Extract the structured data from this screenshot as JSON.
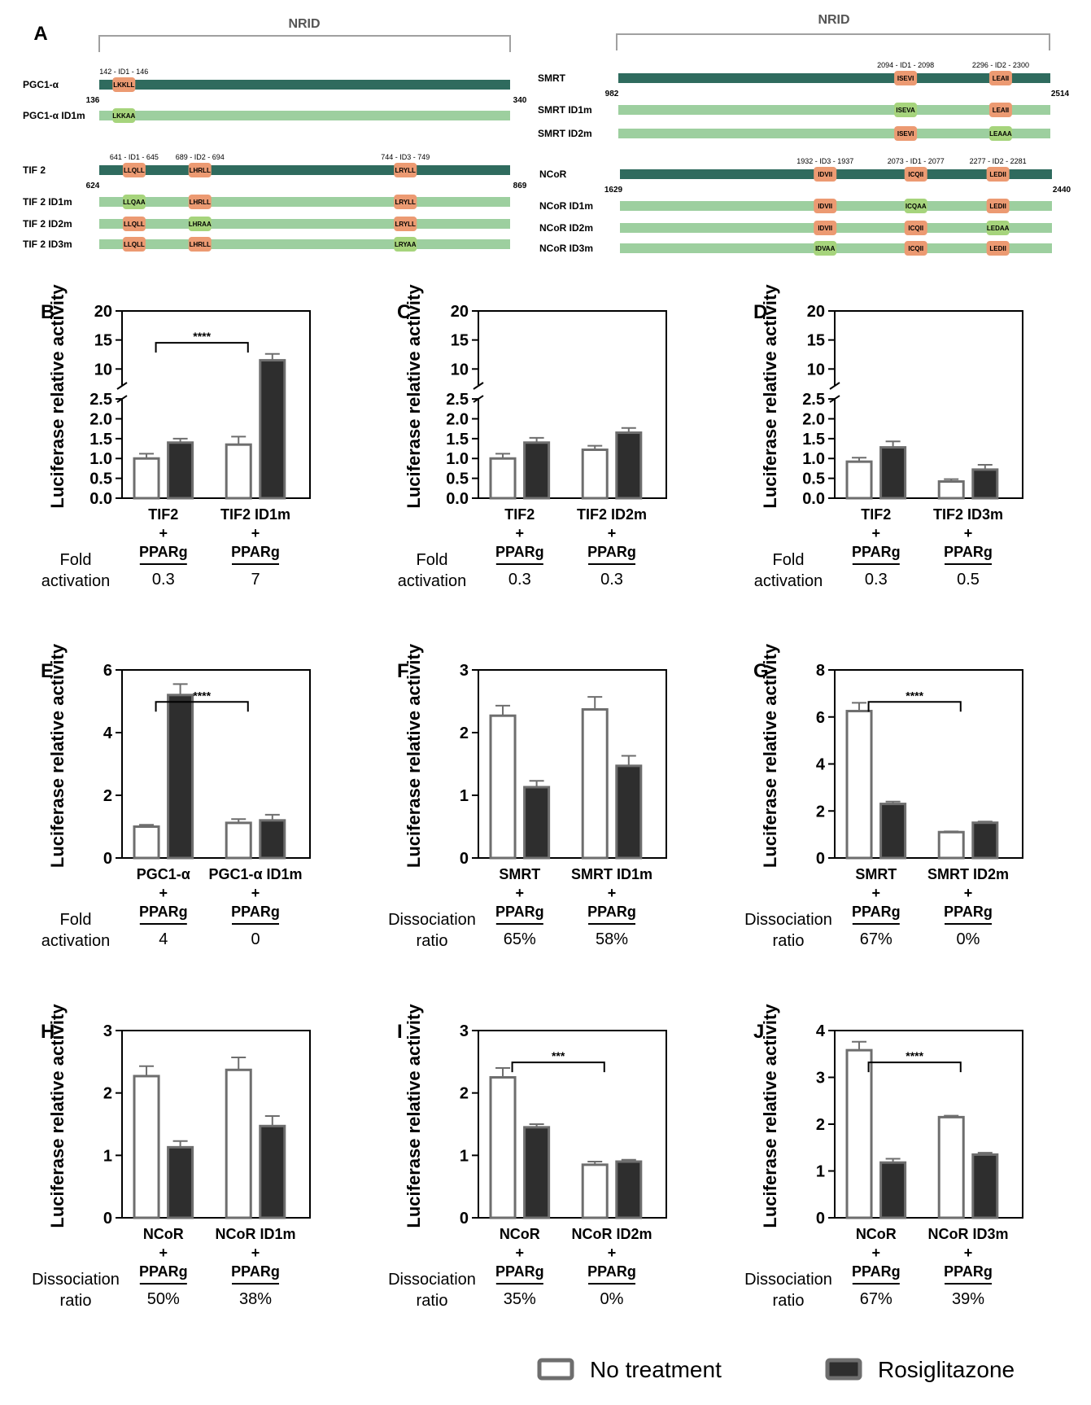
{
  "panel_a": {
    "label": "A",
    "nrid_label": "NRID",
    "left_groups": [
      {
        "rows": [
          {
            "name": "PGC1-α",
            "wt": true,
            "motifs": [
              "LKKLL"
            ],
            "mut": [
              false
            ],
            "ranges": [
              "142 - ID1 - 146"
            ],
            "start": "136",
            "end": "340"
          },
          {
            "name": "PGC1-α ID1m",
            "wt": false,
            "motifs": [
              "LKKAA"
            ],
            "mut": [
              true
            ]
          }
        ],
        "motif_pos": [
          0.06
        ]
      },
      {
        "rows": [
          {
            "name": "TIF 2",
            "wt": true,
            "motifs": [
              "LLQLL",
              "LHRLL",
              "LRYLL"
            ],
            "mut": [
              false,
              false,
              false
            ],
            "ranges": [
              "641 - ID1 - 645",
              "689 - ID2 - 694",
              "744 - ID3 - 749"
            ],
            "start": "624",
            "end": "869"
          },
          {
            "name": "TIF 2 ID1m",
            "wt": false,
            "motifs": [
              "LLQAA",
              "LHRLL",
              "LRYLL"
            ],
            "mut": [
              true,
              false,
              false
            ]
          },
          {
            "name": "TIF 2 ID2m",
            "wt": false,
            "motifs": [
              "LLQLL",
              "LHRAA",
              "LRYLL"
            ],
            "mut": [
              false,
              true,
              false
            ]
          },
          {
            "name": "TIF 2 ID3m",
            "wt": false,
            "motifs": [
              "LLQLL",
              "LHRLL",
              "LRYAA"
            ],
            "mut": [
              false,
              false,
              true
            ]
          }
        ],
        "motif_pos": [
          0.085,
          0.245,
          0.745
        ]
      }
    ],
    "right_groups": [
      {
        "rows": [
          {
            "name": "SMRT",
            "wt": true,
            "motifs": [
              "ISEVI",
              "LEAII"
            ],
            "mut": [
              false,
              false
            ],
            "ranges": [
              "2094 - ID1 - 2098",
              "2296 - ID2 - 2300"
            ],
            "start": "982",
            "end": "2514"
          },
          {
            "name": "SMRT ID1m",
            "wt": false,
            "motifs": [
              "ISEVA",
              "LEAII"
            ],
            "mut": [
              true,
              false
            ]
          },
          {
            "name": "SMRT ID2m",
            "wt": false,
            "motifs": [
              "ISEVI",
              "LEAAA"
            ],
            "mut": [
              false,
              true
            ]
          }
        ],
        "motif_pos": [
          0.665,
          0.885
        ]
      },
      {
        "rows": [
          {
            "name": "NCoR",
            "wt": true,
            "motifs": [
              "IDVII",
              "ICQII",
              "LEDII"
            ],
            "mut": [
              false,
              false,
              false
            ],
            "ranges": [
              "1932 - ID3 - 1937",
              "2073 - ID1 - 2077",
              "2277 - ID2 - 2281"
            ],
            "start": "1629",
            "end": "2440"
          },
          {
            "name": "NCoR ID1m",
            "wt": false,
            "motifs": [
              "IDVII",
              "ICQAA",
              "LEDII"
            ],
            "mut": [
              false,
              true,
              false
            ]
          },
          {
            "name": "NCoR ID2m",
            "wt": false,
            "motifs": [
              "IDVII",
              "ICQII",
              "LEDAA"
            ],
            "mut": [
              false,
              false,
              true
            ]
          },
          {
            "name": "NCoR ID3m",
            "wt": false,
            "motifs": [
              "IDVAA",
              "ICQII",
              "LEDII"
            ],
            "mut": [
              true,
              false,
              false
            ]
          }
        ],
        "motif_pos": [
          0.475,
          0.685,
          0.875
        ]
      }
    ]
  },
  "chart_data": [
    {
      "type": "bar",
      "panel": "B",
      "ylabel": "Luciferase relative activity",
      "broken_axis": true,
      "yticks_low": [
        "0.0",
        "0.5",
        "1.0",
        "1.5",
        "2.0",
        "2.5"
      ],
      "yticks_high": [
        "10",
        "15",
        "20"
      ],
      "groups": [
        {
          "l1": "TIF2",
          "l2": "+",
          "l3": "PPARg",
          "note": "0.3"
        },
        {
          "l1": "TIF2 ID1m",
          "l2": "+",
          "l3": "PPARg",
          "note": "7"
        }
      ],
      "series": [
        {
          "name": "No treatment",
          "values": [
            1.0,
            1.35
          ],
          "errors": [
            0.12,
            0.2
          ]
        },
        {
          "name": "Rosiglitazone",
          "values": [
            1.4,
            11.5
          ],
          "errors": [
            0.1,
            1.1
          ]
        }
      ],
      "note_label": [
        "Fold",
        "activation"
      ],
      "significance": "****"
    },
    {
      "type": "bar",
      "panel": "C",
      "ylabel": "Luciferase relative activity",
      "broken_axis": true,
      "yticks_low": [
        "0.0",
        "0.5",
        "1.0",
        "1.5",
        "2.0",
        "2.5"
      ],
      "yticks_high": [
        "10",
        "15",
        "20"
      ],
      "groups": [
        {
          "l1": "TIF2",
          "l2": "+",
          "l3": "PPARg",
          "note": "0.3"
        },
        {
          "l1": "TIF2 ID2m",
          "l2": "+",
          "l3": "PPARg",
          "note": "0.3"
        }
      ],
      "series": [
        {
          "name": "No treatment",
          "values": [
            1.0,
            1.22
          ],
          "errors": [
            0.12,
            0.1
          ]
        },
        {
          "name": "Rosiglitazone",
          "values": [
            1.4,
            1.65
          ],
          "errors": [
            0.12,
            0.12
          ]
        }
      ],
      "note_label": [
        "Fold",
        "activation"
      ],
      "significance": ""
    },
    {
      "type": "bar",
      "panel": "D",
      "ylabel": "Luciferase relative activity",
      "broken_axis": true,
      "yticks_low": [
        "0.0",
        "0.5",
        "1.0",
        "1.5",
        "2.0",
        "2.5"
      ],
      "yticks_high": [
        "10",
        "15",
        "20"
      ],
      "groups": [
        {
          "l1": "TIF2",
          "l2": "+",
          "l3": "PPARg",
          "note": "0.3"
        },
        {
          "l1": "TIF2 ID3m",
          "l2": "+",
          "l3": "PPARg",
          "note": "0.5"
        }
      ],
      "series": [
        {
          "name": "No treatment",
          "values": [
            0.92,
            0.42
          ],
          "errors": [
            0.1,
            0.06
          ]
        },
        {
          "name": "Rosiglitazone",
          "values": [
            1.28,
            0.72
          ],
          "errors": [
            0.15,
            0.12
          ]
        }
      ],
      "note_label": [
        "Fold",
        "activation"
      ],
      "significance": ""
    },
    {
      "type": "bar",
      "panel": "E",
      "ylabel": "Luciferase relative activity",
      "broken_axis": false,
      "ylim": [
        0,
        6
      ],
      "yticks": [
        "0",
        "2",
        "4",
        "6"
      ],
      "groups": [
        {
          "l1": "PGC1-α",
          "l2": "+",
          "l3": "PPARg",
          "note": "4"
        },
        {
          "l1": "PGC1-α ID1m",
          "l2": "+",
          "l3": "PPARg",
          "note": "0"
        }
      ],
      "series": [
        {
          "name": "No treatment",
          "values": [
            1.0,
            1.12
          ],
          "errors": [
            0.06,
            0.12
          ]
        },
        {
          "name": "Rosiglitazone",
          "values": [
            5.2,
            1.2
          ],
          "errors": [
            0.35,
            0.18
          ]
        }
      ],
      "note_label": [
        "Fold",
        "activation"
      ],
      "significance": "****"
    },
    {
      "type": "bar",
      "panel": "F",
      "ylabel": "Luciferase relative activity",
      "broken_axis": false,
      "ylim": [
        0,
        3
      ],
      "yticks": [
        "0",
        "1",
        "2",
        "3"
      ],
      "groups": [
        {
          "l1": "SMRT",
          "l2": "+",
          "l3": "PPARg",
          "note": "65%"
        },
        {
          "l1": "SMRT ID1m",
          "l2": "+",
          "l3": "PPARg",
          "note": "58%"
        }
      ],
      "series": [
        {
          "name": "No treatment",
          "values": [
            2.27,
            2.37
          ],
          "errors": [
            0.16,
            0.2
          ]
        },
        {
          "name": "Rosiglitazone",
          "values": [
            1.13,
            1.47
          ],
          "errors": [
            0.1,
            0.16
          ]
        }
      ],
      "note_label": [
        "Dissociation",
        "ratio"
      ],
      "significance": ""
    },
    {
      "type": "bar",
      "panel": "G",
      "ylabel": "Luciferase relative activity",
      "broken_axis": false,
      "ylim": [
        0,
        8
      ],
      "yticks": [
        "0",
        "2",
        "4",
        "6",
        "8"
      ],
      "groups": [
        {
          "l1": "SMRT",
          "l2": "+",
          "l3": "PPARg",
          "note": "67%"
        },
        {
          "l1": "SMRT ID2m",
          "l2": "+",
          "l3": "PPARg",
          "note": "0%"
        }
      ],
      "series": [
        {
          "name": "No treatment",
          "values": [
            6.25,
            1.1
          ],
          "errors": [
            0.35,
            0.03
          ]
        },
        {
          "name": "Rosiglitazone",
          "values": [
            2.3,
            1.5
          ],
          "errors": [
            0.1,
            0.05
          ]
        }
      ],
      "note_label": [
        "Dissociation",
        "ratio"
      ],
      "significance": "****"
    },
    {
      "type": "bar",
      "panel": "H",
      "ylabel": "Luciferase relative activity",
      "broken_axis": false,
      "ylim": [
        0,
        3
      ],
      "yticks": [
        "0",
        "1",
        "2",
        "3"
      ],
      "groups": [
        {
          "l1": "NCoR",
          "l2": "+",
          "l3": "PPARg",
          "note": "50%"
        },
        {
          "l1": "NCoR ID1m",
          "l2": "+",
          "l3": "PPARg",
          "note": "38%"
        }
      ],
      "series": [
        {
          "name": "No treatment",
          "values": [
            2.27,
            2.37
          ],
          "errors": [
            0.16,
            0.2
          ]
        },
        {
          "name": "Rosiglitazone",
          "values": [
            1.13,
            1.47
          ],
          "errors": [
            0.1,
            0.16
          ]
        }
      ],
      "note_label": [
        "Dissociation",
        "ratio"
      ],
      "significance": ""
    },
    {
      "type": "bar",
      "panel": "I",
      "ylabel": "Luciferase relative activity",
      "broken_axis": false,
      "ylim": [
        0,
        3
      ],
      "yticks": [
        "0",
        "1",
        "2",
        "3"
      ],
      "groups": [
        {
          "l1": "NCoR",
          "l2": "+",
          "l3": "PPARg",
          "note": "35%"
        },
        {
          "l1": "NCoR ID2m",
          "l2": "+",
          "l3": "PPARg",
          "note": "0%"
        }
      ],
      "series": [
        {
          "name": "No treatment",
          "values": [
            2.25,
            0.85
          ],
          "errors": [
            0.15,
            0.05
          ]
        },
        {
          "name": "Rosiglitazone",
          "values": [
            1.45,
            0.9
          ],
          "errors": [
            0.05,
            0.03
          ]
        }
      ],
      "note_label": [
        "Dissociation",
        "ratio"
      ],
      "significance": "***"
    },
    {
      "type": "bar",
      "panel": "J",
      "ylabel": "Luciferase relative activity",
      "broken_axis": false,
      "ylim": [
        0,
        4
      ],
      "yticks": [
        "0",
        "1",
        "2",
        "3",
        "4"
      ],
      "groups": [
        {
          "l1": "NCoR",
          "l2": "+",
          "l3": "PPARg",
          "note": "67%"
        },
        {
          "l1": "NCoR ID3m",
          "l2": "+",
          "l3": "PPARg",
          "note": "39%"
        }
      ],
      "series": [
        {
          "name": "No treatment",
          "values": [
            3.58,
            2.15
          ],
          "errors": [
            0.18,
            0.03
          ]
        },
        {
          "name": "Rosiglitazone",
          "values": [
            1.18,
            1.35
          ],
          "errors": [
            0.08,
            0.04
          ]
        }
      ],
      "note_label": [
        "Dissociation",
        "ratio"
      ],
      "significance": "****"
    }
  ],
  "legend": {
    "items": [
      {
        "label": "No treatment",
        "fill": "#ffffff"
      },
      {
        "label": "Rosiglitazone",
        "fill": "#2e2e2e"
      }
    ]
  },
  "colors": {
    "wt_bar": "#2f6b5e",
    "mut_bar": "#9dcf9f",
    "wt_motif": "#ec9a72",
    "mut_motif": "#a6d47c",
    "bracket": "#a0a0a0",
    "bar_dark": "#2e2e2e",
    "bar_edge": "#6e6e6e",
    "axis": "#000000"
  }
}
